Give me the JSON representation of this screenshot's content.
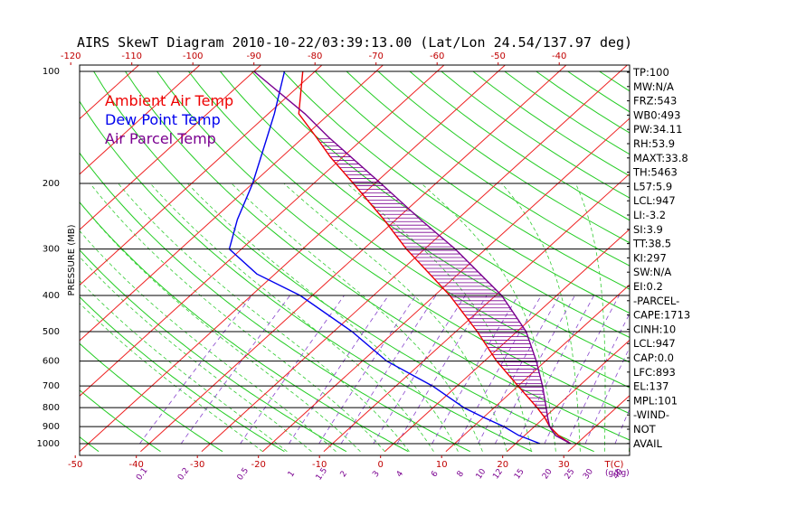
{
  "chart_data": {
    "type": "skewt",
    "title": "AIRS SkewT Diagram 2010-10-22/03:39:13.00 (Lat/Lon 24.54/137.97 deg)",
    "ylabel": "PRESSURE (MB)",
    "xlabel": "T(C)",
    "mixing_ratio_label": "(g/kg)",
    "pressure_levels": [
      100,
      200,
      300,
      400,
      500,
      600,
      700,
      800,
      900,
      1000
    ],
    "bottom_temp_ticks": [
      -50,
      -40,
      -30,
      -20,
      -10,
      0,
      10,
      20,
      30
    ],
    "top_temp_ticks": [
      -120,
      -110,
      -100,
      -90,
      -80,
      -70,
      -60,
      -50,
      -40
    ],
    "mixing_ratio_ticks": [
      "0.1",
      "0.2",
      "0.5",
      "1",
      "1.5",
      "2",
      "3",
      "4",
      "6",
      "8",
      "10",
      "12",
      "15",
      "20",
      "25",
      "30",
      "40"
    ],
    "legend": [
      {
        "label": "Ambient Air Temp",
        "color": "#ee0000"
      },
      {
        "label": "Dew Point Temp",
        "color": "#0000ee"
      },
      {
        "label": "Air Parcel Temp",
        "color": "#7a0090"
      }
    ],
    "indices": [
      "TP:100",
      "MW:N/A",
      "FRZ:543",
      "WB0:493",
      "PW:34.11",
      "RH:53.9",
      "MAXT:33.8",
      "TH:5463",
      "L57:5.9",
      "LCL:947",
      "LI:-3.2",
      "SI:3.9",
      "TT:38.5",
      "KI:297",
      "SW:N/A",
      "EI:0.2",
      "-PARCEL-",
      "CAPE:1713",
      "CINH:10",
      "LCL:947",
      "CAP:0.0",
      "LFC:893",
      "EL:137",
      "MPL:101",
      "-WIND-",
      "NOT",
      "AVAIL"
    ],
    "ambient_temp": [
      [
        1000,
        29.0
      ],
      [
        950,
        25.5
      ],
      [
        900,
        22.5
      ],
      [
        850,
        20.0
      ],
      [
        800,
        17.0
      ],
      [
        700,
        10.0
      ],
      [
        600,
        2.0
      ],
      [
        500,
        -6.5
      ],
      [
        400,
        -17.5
      ],
      [
        300,
        -33.0
      ],
      [
        250,
        -42.0
      ],
      [
        200,
        -53.5
      ],
      [
        170,
        -62.0
      ],
      [
        150,
        -68.0
      ],
      [
        130,
        -75.0
      ],
      [
        100,
        -82.0
      ]
    ],
    "dew_point": [
      [
        1000,
        24.0
      ],
      [
        950,
        19.0
      ],
      [
        900,
        15.0
      ],
      [
        850,
        10.0
      ],
      [
        800,
        5.0
      ],
      [
        700,
        -4.0
      ],
      [
        600,
        -16.0
      ],
      [
        500,
        -27.0
      ],
      [
        400,
        -42.0
      ],
      [
        350,
        -53.0
      ],
      [
        300,
        -62.0
      ],
      [
        250,
        -66.0
      ],
      [
        200,
        -70.0
      ],
      [
        150,
        -76.0
      ],
      [
        130,
        -79.0
      ],
      [
        100,
        -85.0
      ]
    ],
    "parcel_temp": [
      [
        1000,
        29.0
      ],
      [
        950,
        25.0
      ],
      [
        900,
        22.5
      ],
      [
        850,
        20.5
      ],
      [
        800,
        18.5
      ],
      [
        700,
        14.0
      ],
      [
        600,
        8.5
      ],
      [
        500,
        1.5
      ],
      [
        400,
        -9.0
      ],
      [
        300,
        -25.0
      ],
      [
        250,
        -36.0
      ],
      [
        200,
        -49.0
      ],
      [
        150,
        -66.0
      ],
      [
        130,
        -74.0
      ],
      [
        100,
        -90.0
      ]
    ]
  }
}
